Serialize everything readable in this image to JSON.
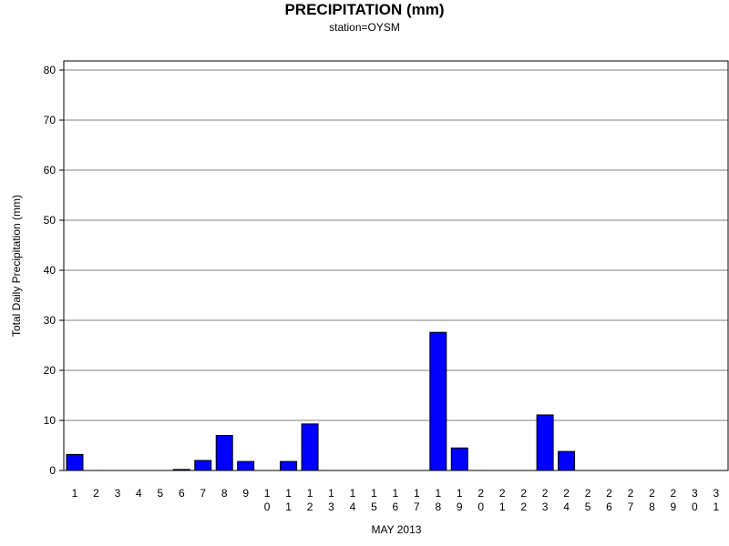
{
  "chart_data": {
    "type": "bar",
    "title": "PRECIPITATION (mm)",
    "subtitle": "station=OYSM",
    "xlabel": "MAY 2013",
    "ylabel": "Total Daily Precipitation (mm)",
    "ylim": [
      0,
      80
    ],
    "yticks": [
      0,
      10,
      20,
      30,
      40,
      50,
      60,
      70,
      80
    ],
    "grid": true,
    "categories": [
      "1",
      "2",
      "3",
      "4",
      "5",
      "6",
      "7",
      "8",
      "9",
      "10",
      "11",
      "12",
      "13",
      "14",
      "15",
      "16",
      "17",
      "18",
      "19",
      "20",
      "21",
      "22",
      "23",
      "24",
      "25",
      "26",
      "27",
      "28",
      "29",
      "30",
      "31"
    ],
    "values": [
      3.2,
      0,
      0,
      0,
      0,
      0.2,
      2.0,
      7.0,
      1.8,
      0,
      1.8,
      9.3,
      0,
      0,
      0,
      0,
      0,
      27.6,
      4.5,
      0,
      0,
      0,
      11.1,
      3.8,
      0,
      0,
      0,
      0,
      0,
      0,
      0
    ],
    "bar_color": "#0000ff"
  }
}
